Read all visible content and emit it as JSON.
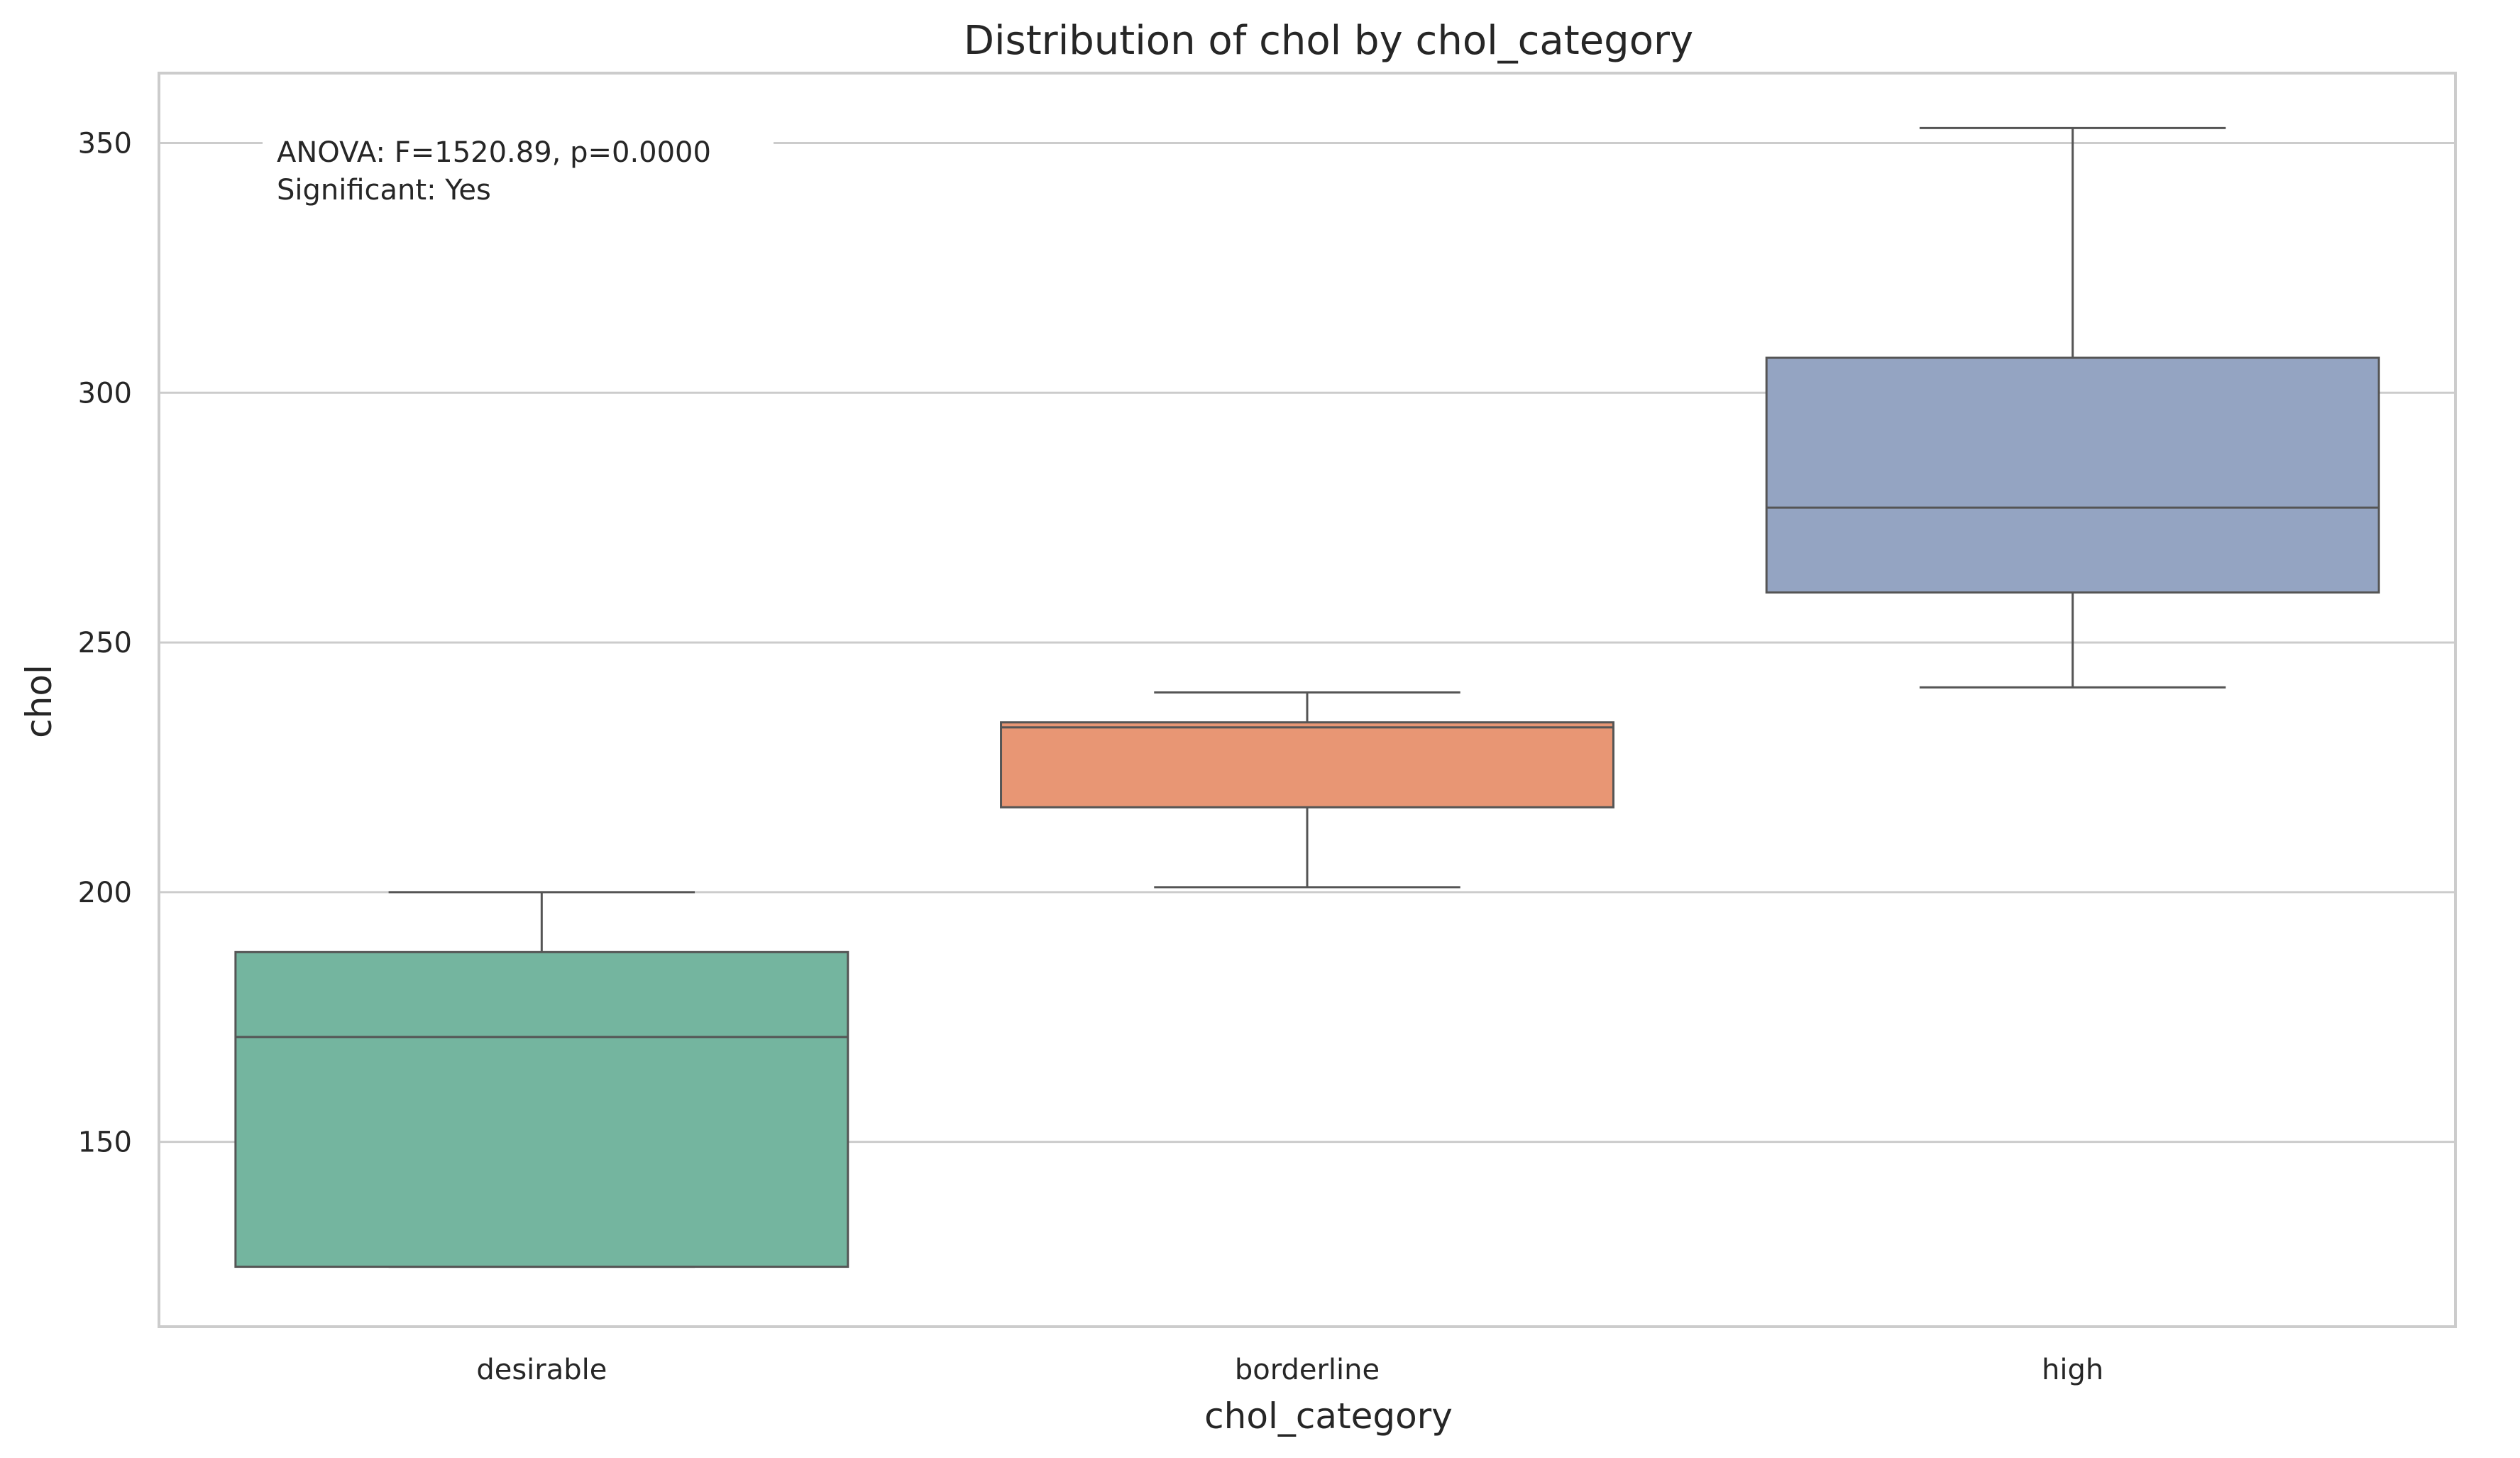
{
  "chart_data": {
    "type": "box",
    "title": "Distribution of chol by chol_category",
    "xlabel": "chol_category",
    "ylabel": "chol",
    "ylim": [
      113,
      364
    ],
    "yticks": [
      150,
      200,
      250,
      300,
      350
    ],
    "grid": true,
    "annotation": [
      "ANOVA: F=1520.89, p=0.0000",
      "Significant: Yes"
    ],
    "categories": [
      "desirable",
      "borderline",
      "high"
    ],
    "boxes": [
      {
        "category": "desirable",
        "whisker_low": 125,
        "q1": 125,
        "median": 171,
        "q3": 188,
        "whisker_high": 200,
        "color": "#74b59f"
      },
      {
        "category": "borderline",
        "whisker_low": 201,
        "q1": 217,
        "median": 233,
        "q3": 234,
        "whisker_high": 240,
        "color": "#e89674"
      },
      {
        "category": "high",
        "whisker_low": 241,
        "q1": 260,
        "median": 277,
        "q3": 307,
        "whisker_high": 353,
        "color": "#94a4c2"
      }
    ]
  }
}
